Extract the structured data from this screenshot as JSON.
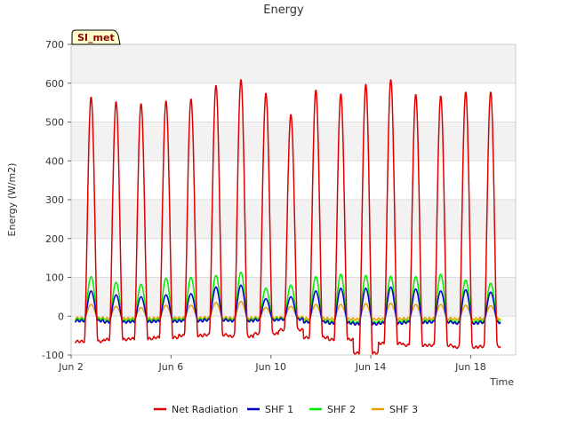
{
  "chart_data": {
    "type": "line",
    "title": "Energy",
    "xlabel": "Time",
    "ylabel": "Energy (W/m2)",
    "site_tag": "SI_met",
    "x_unit": "day of June",
    "xlim": [
      2,
      19.8
    ],
    "ylim": [
      -100,
      700
    ],
    "y_ticks": [
      -100,
      0,
      100,
      200,
      300,
      400,
      500,
      600,
      700
    ],
    "x_ticks": [
      {
        "value": 2,
        "label": "Jun 2"
      },
      {
        "value": 6,
        "label": "Jun 6"
      },
      {
        "value": 10,
        "label": "Jun 10"
      },
      {
        "value": 14,
        "label": "Jun 14"
      },
      {
        "value": 18,
        "label": "Jun 18"
      }
    ],
    "grid": true,
    "legend_position": "bottom",
    "days": [
      2.8,
      3.8,
      4.8,
      5.8,
      6.8,
      7.8,
      8.8,
      9.8,
      10.8,
      11.8,
      12.8,
      13.8,
      14.8,
      15.8,
      16.8,
      17.8,
      18.8
    ],
    "series": [
      {
        "name": "Net Radiation",
        "color": "#dd0000",
        "daily_peak": [
          565,
          553,
          548,
          555,
          560,
          595,
          610,
          575,
          520,
          583,
          573,
          598,
          610,
          572,
          568,
          578,
          578
        ],
        "daily_min": [
          -65,
          -60,
          -58,
          -55,
          -50,
          -48,
          -52,
          -45,
          -35,
          -55,
          -60,
          -95,
          -70,
          -75,
          -75,
          -80,
          -78
        ]
      },
      {
        "name": "SHF 1",
        "color": "#0000cc",
        "daily_peak": [
          65,
          55,
          50,
          55,
          58,
          75,
          80,
          45,
          50,
          65,
          72,
          72,
          75,
          70,
          65,
          68,
          62
        ],
        "daily_min": [
          -12,
          -15,
          -14,
          -13,
          -12,
          -10,
          -12,
          -10,
          -8,
          -15,
          -18,
          -20,
          -18,
          -16,
          -15,
          -18,
          -16
        ]
      },
      {
        "name": "SHF 2",
        "color": "#00ee00",
        "daily_peak": [
          102,
          87,
          82,
          98,
          100,
          105,
          113,
          72,
          80,
          102,
          108,
          105,
          103,
          102,
          108,
          93,
          85
        ],
        "daily_min": [
          -8,
          -12,
          -10,
          -10,
          -9,
          -8,
          -9,
          -7,
          -6,
          -12,
          -14,
          -16,
          -14,
          -12,
          -12,
          -14,
          -12
        ]
      },
      {
        "name": "SHF 3",
        "color": "#e8a000",
        "daily_peak": [
          30,
          25,
          22,
          28,
          28,
          35,
          38,
          22,
          25,
          30,
          30,
          32,
          33,
          30,
          30,
          28,
          27
        ],
        "daily_min": [
          -5,
          -6,
          -6,
          -5,
          -5,
          -4,
          -5,
          -4,
          -3,
          -6,
          -7,
          -8,
          -7,
          -6,
          -6,
          -7,
          -6
        ]
      }
    ]
  }
}
